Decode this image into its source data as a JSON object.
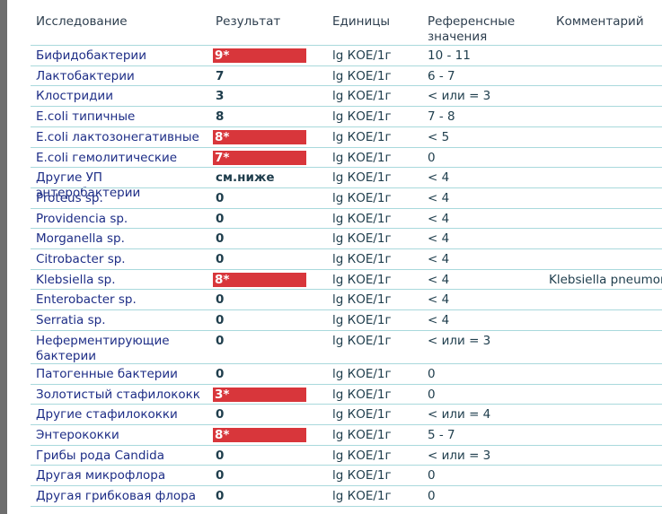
{
  "table": {
    "header": [
      "Исследование",
      "Результат",
      "Единицы",
      "Референсные значения",
      "Комментарий"
    ],
    "rows": [
      {
        "name": "Бифидобактерии",
        "result": "9*",
        "unit": "lg КОЕ/1г",
        "reference": "10 - 11",
        "flag": true
      },
      {
        "name": "Лактобактерии",
        "result": "7",
        "unit": "lg КОЕ/1г",
        "reference": "6 - 7",
        "flag": false
      },
      {
        "name": "Клостридии",
        "result": "3",
        "unit": "lg КОЕ/1г",
        "reference": "< или = 3",
        "flag": false
      },
      {
        "name": "E.coli типичные",
        "result": "8",
        "unit": "lg КОЕ/1г",
        "reference": "7 - 8",
        "flag": false
      },
      {
        "name": "E.coli лактозонегативные",
        "result": "8*",
        "unit": "lg КОЕ/1г",
        "reference": "< 5",
        "flag": true
      },
      {
        "name": "E.coli гемолитические",
        "result": "7*",
        "unit": "lg КОЕ/1г",
        "reference": "0",
        "flag": true
      },
      {
        "name": "Другие УП энтеробактерии",
        "result": "см.ниже",
        "unit": "lg КОЕ/1г",
        "reference": "< 4",
        "flag": false
      },
      {
        "name": "Proteus sp.",
        "result": "0",
        "unit": "lg КОЕ/1г",
        "reference": "< 4",
        "flag": false
      },
      {
        "name": "Providencia sp.",
        "result": "0",
        "unit": "lg КОЕ/1г",
        "reference": "< 4",
        "flag": false
      },
      {
        "name": "Morganella sp.",
        "result": "0",
        "unit": "lg КОЕ/1г",
        "reference": "< 4",
        "flag": false
      },
      {
        "name": "Citrobacter sp.",
        "result": "0",
        "unit": "lg КОЕ/1г",
        "reference": "<  4",
        "flag": false
      },
      {
        "name": "Klebsiella sp.",
        "result": "8*",
        "unit": "lg КОЕ/1г",
        "reference": "< 4",
        "flag": true,
        "comment": "Klebsiella pneumoniae"
      },
      {
        "name": "Enterobacter sp.",
        "result": "0",
        "unit": "lg КОЕ/1г",
        "reference": "< 4",
        "flag": false
      },
      {
        "name": "Serratia sp.",
        "result": "0",
        "unit": "lg КОЕ/1г",
        "reference": "< 4",
        "flag": false
      },
      {
        "name": "Неферментирующие бактерии",
        "result": "0",
        "unit": "lg КОЕ/1г",
        "reference": "< или = 3",
        "flag": false
      },
      {
        "name": "Патогенные бактерии",
        "result": "0",
        "unit": "lg КОЕ/1г",
        "reference": "0",
        "flag": false
      },
      {
        "name": "Золотистый стафилококк",
        "result": "3*",
        "unit": "lg КОЕ/1г",
        "reference": "0",
        "flag": true
      },
      {
        "name": "Другие стафилококки",
        "result": "0",
        "unit": "lg КОЕ/1г",
        "reference": "< или = 4",
        "flag": false
      },
      {
        "name": "Энтерококки",
        "result": "8*",
        "unit": "lg КОЕ/1г",
        "reference": "5 - 7",
        "flag": true
      },
      {
        "name": "Грибы рода Candida",
        "result": "0",
        "unit": "lg КОЕ/1г",
        "reference": "< или = 3",
        "flag": false
      },
      {
        "name": "Другая микрофлора",
        "result": "0",
        "unit": "lg КОЕ/1г",
        "reference": "0",
        "flag": false
      },
      {
        "name": "Другая грибковая флора",
        "result": "0",
        "unit": "lg КОЕ/1г",
        "reference": "0",
        "flag": false
      }
    ]
  }
}
